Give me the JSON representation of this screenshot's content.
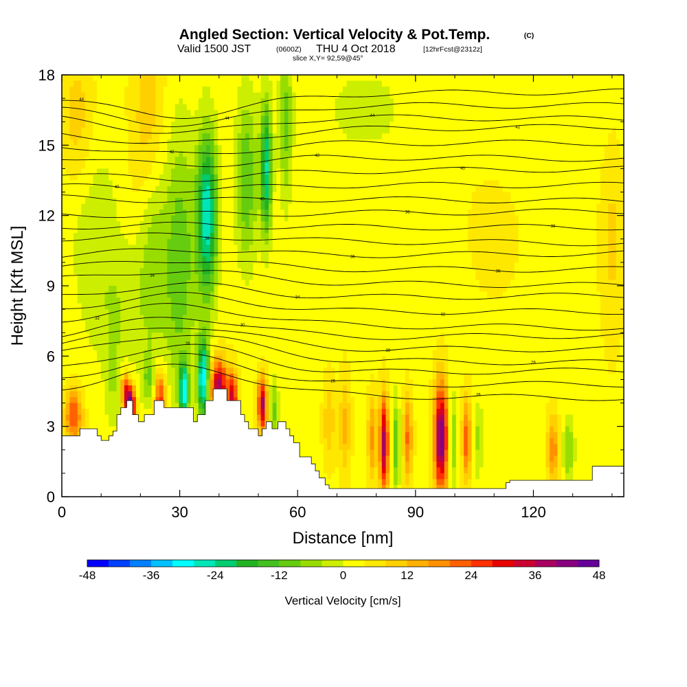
{
  "chart_data": {
    "type": "heatmap",
    "title": "Angled Section: Vertical Velocity & Pot.Temp.",
    "title_unit": "(C)",
    "subtitle": {
      "valid": "Valid 1500 JST",
      "utc": "(0600Z)",
      "date": "THU 4 Oct 2018",
      "forecast": "[12hrFcst@2312z]"
    },
    "slice_label": "slice X,Y= 92,59@45°",
    "xlabel": "Distance [nm]",
    "ylabel": "Height [Kft MSL]",
    "xlim": [
      0,
      143
    ],
    "ylim": [
      0,
      18
    ],
    "x_ticks": [
      "0",
      "30",
      "60",
      "90",
      "120"
    ],
    "y_ticks": [
      "0",
      "3",
      "6",
      "9",
      "12",
      "15",
      "18"
    ],
    "grid": false,
    "colorbar": {
      "label": "Vertical Velocity [cm/s]",
      "ticks": [
        "-48",
        "-36",
        "-24",
        "-12",
        "0",
        "12",
        "24",
        "36",
        "48"
      ],
      "range": [
        -48,
        48
      ],
      "step": 4,
      "colors": [
        "#0000ff",
        "#0040ff",
        "#0080ff",
        "#00c0ff",
        "#00ffff",
        "#00e6b8",
        "#00cc70",
        "#22b222",
        "#44c020",
        "#66cc10",
        "#99dd00",
        "#ccee00",
        "#ffff00",
        "#ffe800",
        "#ffd000",
        "#ffb000",
        "#ff9000",
        "#ff6000",
        "#ff3000",
        "#e80000",
        "#cc0030",
        "#aa0060",
        "#880080",
        "#660099"
      ]
    },
    "velocity_features": [
      {
        "x": 22,
        "y": 15.5,
        "sx": 3,
        "sy": 3,
        "value": 9
      },
      {
        "x": 4,
        "y": 16,
        "sx": 3,
        "sy": 2,
        "value": 8
      },
      {
        "x": 3,
        "y": 3.4,
        "sx": 1.5,
        "sy": 0.8,
        "value": 22
      },
      {
        "x": 13,
        "y": 4.8,
        "sx": 1.5,
        "sy": 1.5,
        "value": -6
      },
      {
        "x": 17.5,
        "y": 3.9,
        "sx": 0.8,
        "sy": 0.6,
        "value": 45
      },
      {
        "x": 16,
        "y": 4.5,
        "sx": 0.6,
        "sy": 0.6,
        "value": 25
      },
      {
        "x": 22,
        "y": 5.0,
        "sx": 1.2,
        "sy": 0.8,
        "value": -10
      },
      {
        "x": 25,
        "y": 4.2,
        "sx": 1.0,
        "sy": 0.8,
        "value": 25
      },
      {
        "x": 31,
        "y": 4.5,
        "sx": 0.8,
        "sy": 0.8,
        "value": -32
      },
      {
        "x": 36,
        "y": 5.0,
        "sx": 1.0,
        "sy": 1.2,
        "value": -34
      },
      {
        "x": 40,
        "y": 4.7,
        "sx": 1.5,
        "sy": 0.8,
        "value": 35
      },
      {
        "x": 43.5,
        "y": 4.2,
        "sx": 0.8,
        "sy": 0.8,
        "value": 30
      },
      {
        "x": 51,
        "y": 3.9,
        "sx": 0.8,
        "sy": 0.8,
        "value": 35
      },
      {
        "x": 54,
        "y": 3.6,
        "sx": 0.8,
        "sy": 1.0,
        "value": -12
      },
      {
        "x": 30,
        "y": 10,
        "sx": 3,
        "sy": 4,
        "value": -14
      },
      {
        "x": 37,
        "y": 12,
        "sx": 1.8,
        "sy": 2.5,
        "value": -30
      },
      {
        "x": 23,
        "y": 11,
        "sx": 2.5,
        "sy": 3,
        "value": -10
      },
      {
        "x": 47,
        "y": 13.5,
        "sx": 2,
        "sy": 2.5,
        "value": -15
      },
      {
        "x": 52,
        "y": 14,
        "sx": 1,
        "sy": 2,
        "value": -27
      },
      {
        "x": 57,
        "y": 16,
        "sx": 1.2,
        "sy": 2.5,
        "value": -12
      },
      {
        "x": 77,
        "y": 16.5,
        "sx": 10,
        "sy": 1.8,
        "value": -4
      },
      {
        "x": 120,
        "y": 16,
        "sx": 12,
        "sy": 1.8,
        "value": -3
      },
      {
        "x": 15,
        "y": 8,
        "sx": 6,
        "sy": 2,
        "value": -6
      },
      {
        "x": 82,
        "y": 2.2,
        "sx": 0.8,
        "sy": 1.4,
        "value": 36
      },
      {
        "x": 85,
        "y": 2.2,
        "sx": 0.7,
        "sy": 1.4,
        "value": -14
      },
      {
        "x": 79,
        "y": 2.5,
        "sx": 0.8,
        "sy": 1.2,
        "value": 14
      },
      {
        "x": 88,
        "y": 2.5,
        "sx": 0.8,
        "sy": 1.2,
        "value": 18
      },
      {
        "x": 96.5,
        "y": 2.5,
        "sx": 1.2,
        "sy": 1.6,
        "value": 42
      },
      {
        "x": 99.5,
        "y": 2.4,
        "sx": 0.8,
        "sy": 1.4,
        "value": -12
      },
      {
        "x": 103,
        "y": 2.4,
        "sx": 0.8,
        "sy": 1.2,
        "value": 20
      },
      {
        "x": 106,
        "y": 2.4,
        "sx": 0.8,
        "sy": 1.2,
        "value": -8
      },
      {
        "x": 125,
        "y": 2.0,
        "sx": 1.0,
        "sy": 1.0,
        "value": 16
      },
      {
        "x": 129,
        "y": 2.0,
        "sx": 1.0,
        "sy": 1.0,
        "value": -12
      },
      {
        "x": 68,
        "y": 3.2,
        "sx": 1,
        "sy": 1.2,
        "value": 9
      },
      {
        "x": 72,
        "y": 3,
        "sx": 1,
        "sy": 1.5,
        "value": 10
      },
      {
        "x": 140,
        "y": 11,
        "sx": 2,
        "sy": 3,
        "value": 6
      },
      {
        "x": 110,
        "y": 12,
        "sx": 6,
        "sy": 3,
        "value": 2
      },
      {
        "x": 8,
        "y": 12,
        "sx": 5,
        "sy": 3,
        "value": -5
      }
    ],
    "terrain": {
      "x": [
        0,
        4.6,
        4.6,
        9,
        9,
        10,
        10,
        12,
        12,
        13,
        13,
        14,
        14,
        15,
        15,
        16.5,
        16.5,
        18,
        18,
        19.5,
        19.5,
        21,
        21,
        23.5,
        23.5,
        26,
        26,
        33.5,
        33.5,
        34.5,
        34.5,
        36.5,
        36.5,
        38.5,
        38.5,
        42,
        42,
        45.5,
        45.5,
        46.5,
        46.5,
        47.5,
        47.5,
        50,
        50,
        51,
        51,
        52,
        52,
        53.5,
        53.5,
        55,
        55,
        57,
        57,
        58,
        58,
        59,
        59,
        60.5,
        60.5,
        63.5,
        63.5,
        64.5,
        64.5,
        65.5,
        65.5,
        67,
        67,
        68,
        68,
        96,
        96,
        113,
        113,
        114,
        114,
        135,
        135,
        143
      ],
      "y": [
        2.6,
        2.6,
        2.9,
        2.9,
        2.6,
        2.6,
        2.4,
        2.4,
        2.6,
        2.6,
        2.8,
        2.8,
        3.5,
        3.5,
        3.8,
        3.8,
        4.1,
        4.1,
        3.5,
        3.5,
        3.2,
        3.2,
        3.5,
        3.5,
        4.1,
        4.1,
        3.8,
        3.8,
        3.2,
        3.2,
        3.5,
        3.5,
        4.1,
        4.1,
        4.6,
        4.6,
        4.1,
        4.1,
        3.5,
        3.5,
        3.2,
        3.2,
        2.9,
        2.9,
        2.6,
        2.6,
        2.9,
        2.9,
        3.2,
        3.2,
        2.9,
        2.9,
        3.2,
        3.2,
        2.9,
        2.9,
        2.6,
        2.6,
        2.3,
        2.3,
        1.7,
        1.7,
        1.4,
        1.4,
        1.1,
        1.1,
        0.8,
        0.8,
        0.5,
        0.5,
        0.35,
        0.35,
        0.35,
        0.35,
        0.6,
        0.6,
        0.7,
        0.7,
        1.3,
        1.3
      ]
    },
    "isentropes": [
      {
        "label": "44",
        "h0": 17.2,
        "w0": -0.9
      },
      {
        "label": "44",
        "h0": 16.7,
        "w0": -0.8
      },
      {
        "label": "44",
        "h0": 16.2,
        "w0": -0.7
      },
      {
        "label": "42",
        "h0": 15.7,
        "w0": -0.6
      },
      {
        "label": "42",
        "h0": 15.1,
        "w0": -0.5
      },
      {
        "label": "42",
        "h0": 14.5,
        "w0": -0.4
      },
      {
        "label": "40",
        "h0": 13.9,
        "w0": -0.3
      },
      {
        "label": "40",
        "h0": 13.3,
        "w0": -0.2
      },
      {
        "label": "40",
        "h0": 12.7,
        "w0": -0.1
      },
      {
        "label": "38",
        "h0": 12.1,
        "w0": 0.0
      },
      {
        "label": "38",
        "h0": 11.5,
        "w0": 0.1
      },
      {
        "label": "38",
        "h0": 10.9,
        "w0": 0.2
      },
      {
        "label": "36",
        "h0": 10.3,
        "w0": 0.3
      },
      {
        "label": "36",
        "h0": 9.7,
        "w0": 0.4
      },
      {
        "label": "34",
        "h0": 9.1,
        "w0": 0.5
      },
      {
        "label": "34",
        "h0": 8.5,
        "w0": 0.6
      },
      {
        "label": "32",
        "h0": 7.9,
        "w0": 0.7
      },
      {
        "label": "32",
        "h0": 7.3,
        "w0": 0.8
      },
      {
        "label": "30",
        "h0": 6.8,
        "w0": 0.9
      },
      {
        "label": "30",
        "h0": 6.3,
        "w0": 1.0
      },
      {
        "label": "28",
        "h0": 5.8,
        "w0": 1.1
      },
      {
        "label": "28",
        "h0": 5.3,
        "w0": 1.2
      },
      {
        "label": "26",
        "h0": 4.8,
        "w0": 1.2
      },
      {
        "label": "26",
        "h0": 4.3,
        "w0": 1.2
      }
    ]
  }
}
